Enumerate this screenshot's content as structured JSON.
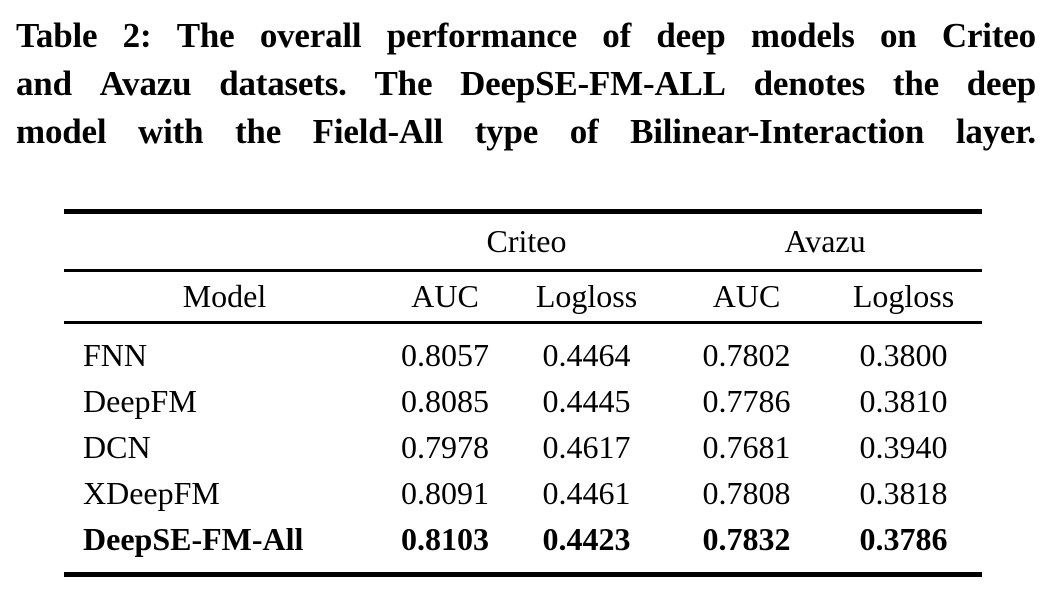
{
  "colors": {
    "text": "#000000",
    "background": "#ffffff",
    "rule": "#000000"
  },
  "caption": {
    "label": "Table 2:",
    "full_text": "Table 2: The overall performance of deep models on Criteo and Avazu datasets. The DeepSE-FM-ALL denotes the deep model with the Field-All type of Bilinear-Interaction layer.",
    "lines": [
      "Table 2: The overall performance of deep models on Criteo",
      "and Avazu datasets. The DeepSE-FM-ALL denotes the deep",
      "model with the Field-All type of Bilinear-Interaction layer."
    ]
  },
  "table": {
    "group_headers": [
      {
        "label": "Criteo",
        "span": 2
      },
      {
        "label": "Avazu",
        "span": 2
      }
    ],
    "columns": [
      "Model",
      "AUC",
      "Logloss",
      "AUC",
      "Logloss"
    ],
    "rows": [
      {
        "model": "FNN",
        "values": [
          "0.8057",
          "0.4464",
          "0.7802",
          "0.3800"
        ],
        "bold": false
      },
      {
        "model": "DeepFM",
        "values": [
          "0.8085",
          "0.4445",
          "0.7786",
          "0.3810"
        ],
        "bold": false
      },
      {
        "model": "DCN",
        "values": [
          "0.7978",
          "0.4617",
          "0.7681",
          "0.3940"
        ],
        "bold": false
      },
      {
        "model": "XDeepFM",
        "values": [
          "0.8091",
          "0.4461",
          "0.7808",
          "0.3818"
        ],
        "bold": false
      },
      {
        "model": "DeepSE-FM-All",
        "values": [
          "0.8103",
          "0.4423",
          "0.7832",
          "0.3786"
        ],
        "bold": true
      }
    ]
  }
}
